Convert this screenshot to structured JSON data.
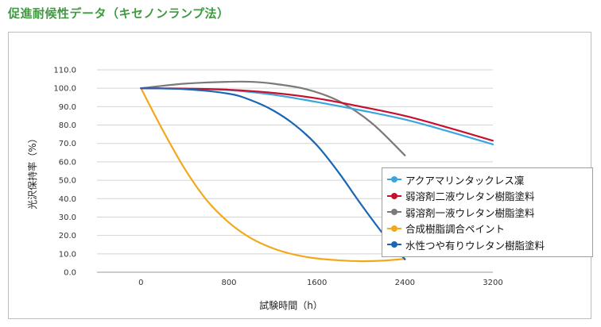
{
  "page": {
    "title": "促進耐候性データ（キセノンランプ法）"
  },
  "chart_data": {
    "type": "line",
    "title": "",
    "xlabel": "試験時間（h）",
    "ylabel": "光沢保持率（%）",
    "xlim": [
      -400,
      3200
    ],
    "ylim": [
      0,
      110
    ],
    "x_ticks": [
      0,
      800,
      1600,
      2400,
      3200
    ],
    "x_tick_labels": [
      "0",
      "800",
      "1600",
      "2400",
      "3200"
    ],
    "y_ticks": [
      0,
      10,
      20,
      30,
      40,
      50,
      60,
      70,
      80,
      90,
      100,
      110
    ],
    "y_tick_labels": [
      "0.0",
      "10.0",
      "20.0",
      "30.0",
      "40.0",
      "50.0",
      "60.0",
      "70.0",
      "80.0",
      "90.0",
      "100.0",
      "110.0"
    ],
    "grid": true,
    "legend_position": "right",
    "series": [
      {
        "name": "アクアマリンタックレス凜",
        "color": "#3aa6dd",
        "x": [
          0,
          400,
          800,
          1200,
          1600,
          2000,
          2400,
          2800,
          3200
        ],
        "y": [
          100,
          99.7,
          99,
          96.5,
          92.5,
          88,
          83,
          76.5,
          69.5
        ]
      },
      {
        "name": "弱溶剤二液ウレタン樹脂塗料",
        "color": "#c8102e",
        "x": [
          0,
          400,
          800,
          1200,
          1600,
          2000,
          2400,
          2800,
          3200
        ],
        "y": [
          100,
          99.8,
          99.2,
          97.5,
          94.5,
          90,
          85,
          78.5,
          71.5
        ]
      },
      {
        "name": "弱溶剤一液ウレタン樹脂塗料",
        "color": "#7a7a7a",
        "x": [
          0,
          400,
          800,
          1000,
          1200,
          1500,
          1800,
          2100,
          2400
        ],
        "y": [
          100,
          102.5,
          103.5,
          103.5,
          102.5,
          99.5,
          93,
          81,
          63.5
        ]
      },
      {
        "name": "合成樹脂調合ペイント",
        "color": "#f2a81d",
        "x": [
          0,
          200,
          400,
          600,
          800,
          1000,
          1200,
          1400,
          1600,
          1800,
          2000,
          2200,
          2400
        ],
        "y": [
          100,
          77,
          56,
          39,
          27,
          18.5,
          13,
          9.5,
          7.5,
          6.5,
          6,
          6.3,
          7.3
        ]
      },
      {
        "name": "水性つや有りウレタン樹脂塗料",
        "color": "#1a66b5",
        "x": [
          0,
          400,
          800,
          1000,
          1200,
          1400,
          1600,
          1800,
          2000,
          2200,
          2400
        ],
        "y": [
          100,
          99.5,
          97,
          93.5,
          88,
          80,
          69,
          54,
          37,
          21,
          7
        ]
      }
    ]
  }
}
